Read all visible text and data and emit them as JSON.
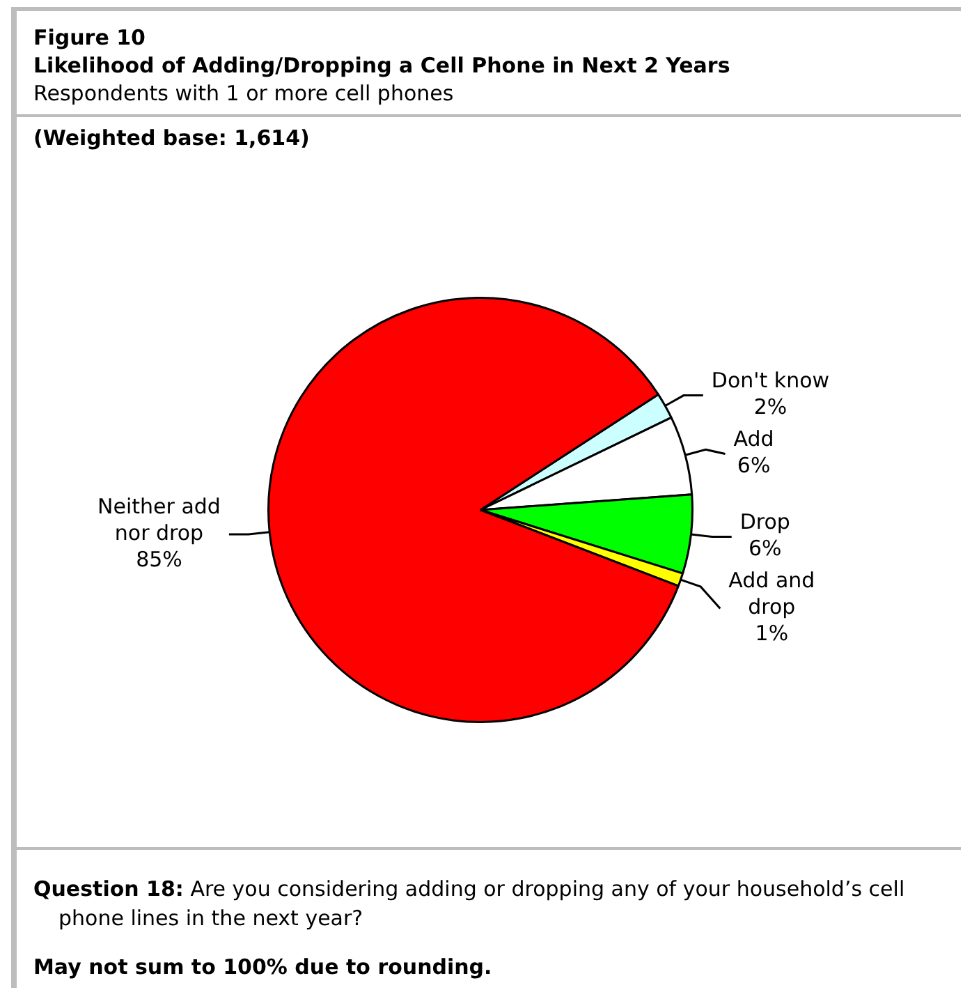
{
  "chart_data": {
    "type": "pie",
    "title": "Likelihood of Adding/Dropping a Cell Phone in Next 2 Years",
    "subtitle": "Respondents with 1 or more cell phones",
    "annotations": [
      "Figure 10",
      "(Weighted base:  1,614)",
      "Question 18:   Are you considering adding or dropping any of your household’s cell phone lines in the next year?",
      "May not sum to 100% due to rounding."
    ],
    "categories": [
      "Don't know",
      "Add",
      "Drop",
      "Add and drop",
      "Neither add nor drop"
    ],
    "values": [
      2,
      6,
      6,
      1,
      85
    ],
    "value_labels": [
      "2%",
      "6%",
      "6%",
      "1%",
      "85%"
    ],
    "colors": [
      "#ccffff",
      "#ffffff",
      "#00ff00",
      "#ffff00",
      "#ff0000"
    ]
  }
}
